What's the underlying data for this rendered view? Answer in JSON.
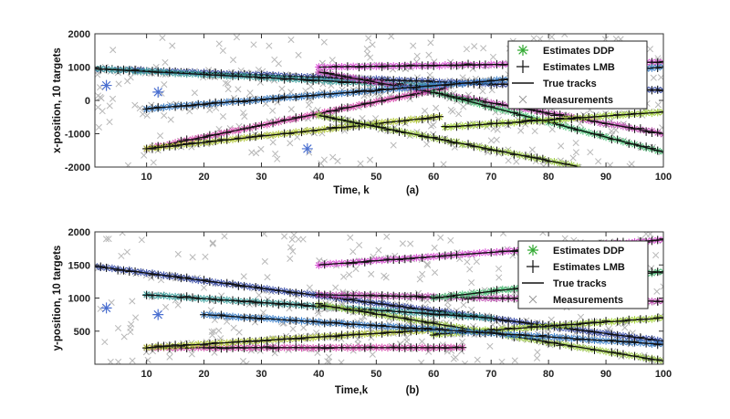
{
  "chart_data": [
    {
      "type": "scatter",
      "panel_label": "(a)",
      "xlabel": "Time, k",
      "ylabel": "x-position, 10 targets",
      "xlim": [
        1,
        100
      ],
      "ylim": [
        -2000,
        2000
      ],
      "xticks": [
        10,
        20,
        30,
        40,
        50,
        60,
        70,
        80,
        90,
        100
      ],
      "yticks": [
        -2000,
        -1000,
        0,
        1000,
        2000
      ],
      "legend_position": "top-right",
      "legend": [
        {
          "label": "Estimates   DDP",
          "marker": "asterisk",
          "color": "#33aa33"
        },
        {
          "label": "Estimates   LMB",
          "marker": "plus",
          "color": "#111111"
        },
        {
          "label": "True tracks",
          "marker": "line",
          "color": "#111111"
        },
        {
          "label": "Measurements",
          "marker": "x",
          "color": "#999999"
        }
      ],
      "tracks": [
        {
          "color": "#3b4fa8",
          "points": [
            [
              1,
              950
            ],
            [
              100,
              300
            ]
          ]
        },
        {
          "color": "#3fa2a0",
          "points": [
            [
              1,
              950
            ],
            [
              60,
              420
            ]
          ]
        },
        {
          "color": "#d94fb0",
          "points": [
            [
              10,
              -1450
            ],
            [
              62,
              380
            ]
          ]
        },
        {
          "color": "#b3c83a",
          "points": [
            [
              10,
              -1450
            ],
            [
              61,
              -490
            ]
          ]
        },
        {
          "color": "#d94fd4",
          "points": [
            [
              40,
              1000
            ],
            [
              100,
              1150
            ]
          ]
        },
        {
          "color": "#9ec94a",
          "points": [
            [
              40,
              -450
            ],
            [
              85,
              -1980
            ]
          ]
        },
        {
          "color": "#c04fb3",
          "points": [
            [
              40,
              850
            ],
            [
              100,
              -1000
            ]
          ]
        },
        {
          "color": "#4fc27a",
          "points": [
            [
              60,
              250
            ],
            [
              100,
              -1550
            ]
          ]
        },
        {
          "color": "#a5d23c",
          "points": [
            [
              62,
              -800
            ],
            [
              100,
              -350
            ]
          ]
        },
        {
          "color": "#3b7fc8",
          "points": [
            [
              10,
              -250
            ],
            [
              100,
              1000
            ]
          ]
        }
      ],
      "stray_estimates": [
        [
          3,
          450
        ],
        [
          12,
          250
        ],
        [
          38,
          -1450
        ]
      ]
    },
    {
      "type": "scatter",
      "panel_label": "(b)",
      "xlabel": "Time,k",
      "ylabel": "y-position, 10 targets",
      "xlim": [
        1,
        100
      ],
      "ylim": [
        0,
        2000
      ],
      "xticks": [
        10,
        20,
        30,
        40,
        50,
        60,
        70,
        80,
        90,
        100
      ],
      "yticks": [
        500,
        1000,
        1500,
        2000
      ],
      "legend_position": "top-right",
      "legend": [
        {
          "label": "Estimates   DDP",
          "marker": "asterisk",
          "color": "#33aa33"
        },
        {
          "label": "Estimates   LMB",
          "marker": "plus",
          "color": "#111111"
        },
        {
          "label": "True tracks",
          "marker": "line",
          "color": "#111111"
        },
        {
          "label": "Measurements",
          "marker": "x",
          "color": "#999999"
        }
      ],
      "tracks": [
        {
          "color": "#3b4fa8",
          "points": [
            [
              1,
              1480
            ],
            [
              100,
              350
            ]
          ]
        },
        {
          "color": "#3fa2a0",
          "points": [
            [
              10,
              1050
            ],
            [
              70,
              700
            ]
          ]
        },
        {
          "color": "#d94fb0",
          "points": [
            [
              10,
              250
            ],
            [
              65,
              250
            ]
          ]
        },
        {
          "color": "#b3c83a",
          "points": [
            [
              10,
              250
            ],
            [
              60,
              520
            ]
          ]
        },
        {
          "color": "#d94fd4",
          "points": [
            [
              40,
              1500
            ],
            [
              100,
              1880
            ]
          ]
        },
        {
          "color": "#9ec94a",
          "points": [
            [
              40,
              900
            ],
            [
              100,
              50
            ]
          ]
        },
        {
          "color": "#c04fb3",
          "points": [
            [
              40,
              1050
            ],
            [
              100,
              950
            ]
          ]
        },
        {
          "color": "#4fc27a",
          "points": [
            [
              60,
              1000
            ],
            [
              100,
              1400
            ]
          ]
        },
        {
          "color": "#a5d23c",
          "points": [
            [
              60,
              450
            ],
            [
              100,
              700
            ]
          ]
        },
        {
          "color": "#3b7fc8",
          "points": [
            [
              20,
              750
            ],
            [
              100,
              300
            ]
          ]
        }
      ],
      "stray_estimates": [
        [
          3,
          850
        ],
        [
          12,
          750
        ]
      ]
    }
  ]
}
